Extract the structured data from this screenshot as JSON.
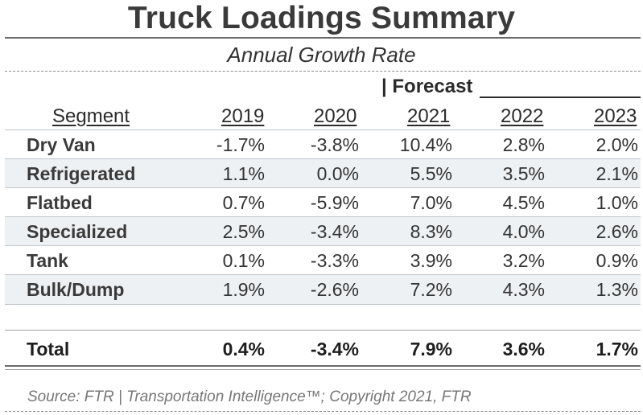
{
  "title": "Truck Loadings Summary",
  "subtitle": "Annual Growth Rate",
  "forecast_label": "| Forecast",
  "columns": {
    "segment": "Segment",
    "years": [
      "2019",
      "2020",
      "2021",
      "2022",
      "2023"
    ]
  },
  "rows": [
    {
      "segment": "Dry Van",
      "values": [
        "-1.7%",
        "-3.8%",
        "10.4%",
        "2.8%",
        "2.0%"
      ]
    },
    {
      "segment": "Refrigerated",
      "values": [
        "1.1%",
        "0.0%",
        "5.5%",
        "3.5%",
        "2.1%"
      ]
    },
    {
      "segment": "Flatbed",
      "values": [
        "0.7%",
        "-5.9%",
        "7.0%",
        "4.5%",
        "1.0%"
      ]
    },
    {
      "segment": "Specialized",
      "values": [
        "2.5%",
        "-3.4%",
        "8.3%",
        "4.0%",
        "2.6%"
      ]
    },
    {
      "segment": "Tank",
      "values": [
        "0.1%",
        "-3.3%",
        "3.9%",
        "3.2%",
        "0.9%"
      ]
    },
    {
      "segment": "Bulk/Dump",
      "values": [
        "1.9%",
        "-2.6%",
        "7.2%",
        "4.3%",
        "1.3%"
      ]
    }
  ],
  "total": {
    "segment": "Total",
    "values": [
      "0.4%",
      "-3.4%",
      "7.9%",
      "3.6%",
      "1.7%"
    ]
  },
  "source": "Source: FTR | Transportation Intelligence™; Copyright 2021, FTR"
}
